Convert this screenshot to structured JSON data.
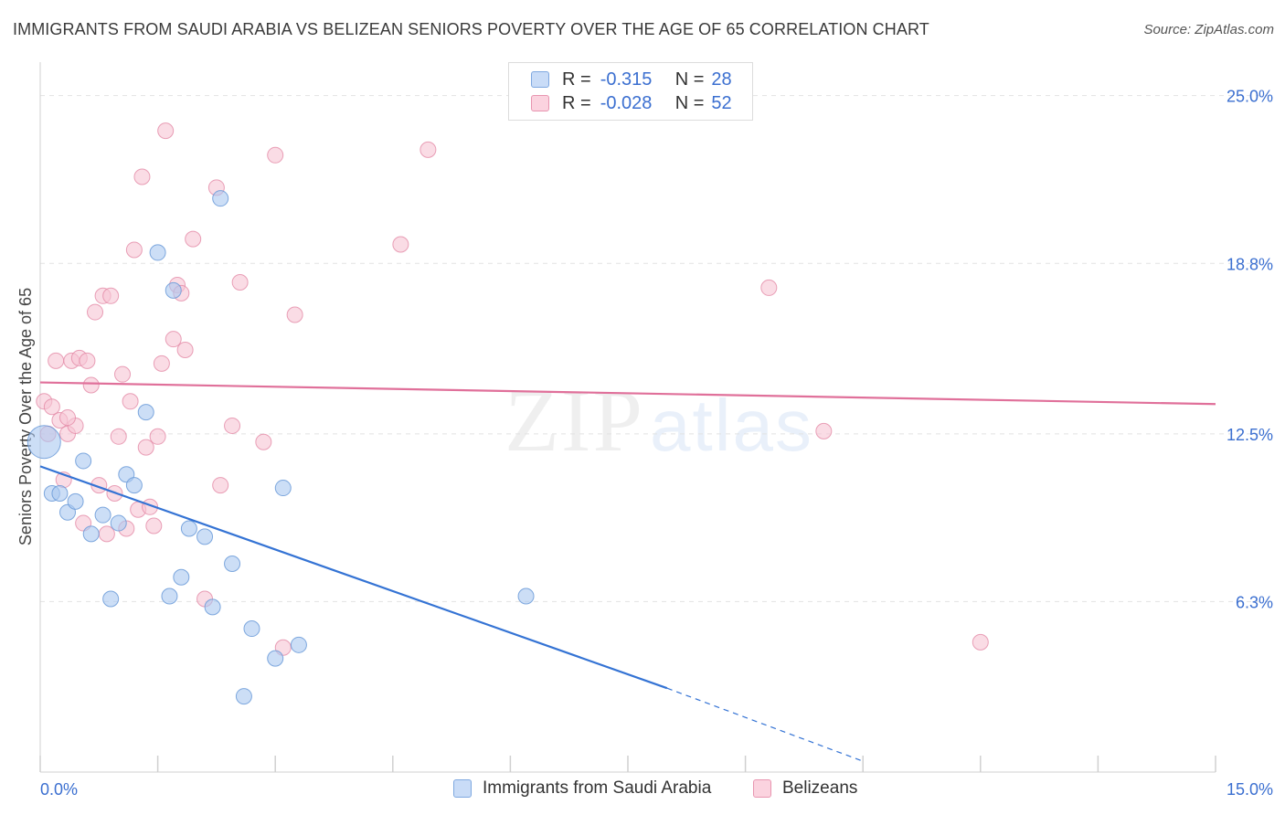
{
  "header": {
    "title": "IMMIGRANTS FROM SAUDI ARABIA VS BELIZEAN SENIORS POVERTY OVER THE AGE OF 65 CORRELATION CHART",
    "source": "Source: ZipAtlas.com"
  },
  "watermark": {
    "zip": "ZIP",
    "atlas": "atlas"
  },
  "legend": {
    "rows": [
      {
        "r_label": "R =",
        "r_value": "-0.315",
        "n_label": "N =",
        "n_value": "28",
        "color": "#aac8f0"
      },
      {
        "r_label": "R =",
        "r_value": "-0.028",
        "n_label": "N =",
        "n_value": "52",
        "color": "#f7bfd0"
      }
    ]
  },
  "colors": {
    "blue_fill": "#aac8f0",
    "blue_stroke": "#6a9ad8",
    "blue_line": "#3473d4",
    "pink_fill": "#f7c5d4",
    "pink_stroke": "#e38aa6",
    "pink_line": "#e0709a",
    "axis_label": "#3b6fd0",
    "grid": "#e2e2e2"
  },
  "chart_data": {
    "type": "scatter",
    "title": "IMMIGRANTS FROM SAUDI ARABIA VS BELIZEAN SENIORS POVERTY OVER THE AGE OF 65 CORRELATION CHART",
    "xlabel": "",
    "ylabel": "Seniors Poverty Over the Age of 65",
    "xlim": [
      0,
      15
    ],
    "ylim": [
      0,
      25.9
    ],
    "x_tick_labels": [
      "0.0%",
      "15.0%"
    ],
    "y_ticks": [
      6.3,
      12.5,
      18.8,
      25.0
    ],
    "y_tick_labels": [
      "6.3%",
      "12.5%",
      "18.8%",
      "25.0%"
    ],
    "grid": true,
    "legend_position": "bottom-center",
    "series": [
      {
        "name": "Immigrants from Saudi Arabia",
        "color": "#aac8f0",
        "points": [
          [
            0.05,
            12.2
          ],
          [
            0.15,
            10.3
          ],
          [
            0.25,
            10.3
          ],
          [
            0.35,
            9.6
          ],
          [
            0.45,
            10.0
          ],
          [
            0.55,
            11.5
          ],
          [
            0.65,
            8.8
          ],
          [
            0.8,
            9.5
          ],
          [
            0.9,
            6.4
          ],
          [
            1.0,
            9.2
          ],
          [
            1.1,
            11.0
          ],
          [
            1.2,
            10.6
          ],
          [
            1.35,
            13.3
          ],
          [
            1.5,
            19.2
          ],
          [
            1.65,
            6.5
          ],
          [
            1.7,
            17.8
          ],
          [
            1.8,
            7.2
          ],
          [
            1.9,
            9.0
          ],
          [
            2.1,
            8.7
          ],
          [
            2.2,
            6.1
          ],
          [
            2.3,
            21.2
          ],
          [
            2.45,
            7.7
          ],
          [
            2.6,
            2.8
          ],
          [
            2.7,
            5.3
          ],
          [
            3.0,
            4.2
          ],
          [
            3.1,
            10.5
          ],
          [
            3.3,
            4.7
          ],
          [
            6.2,
            6.5
          ]
        ],
        "trend": {
          "x": [
            0.0,
            8.0
          ],
          "y": [
            11.3,
            3.1
          ],
          "dashed_to": [
            10.5,
            0.4
          ]
        }
      },
      {
        "name": "Belizeans",
        "color": "#f7bfd0",
        "points": [
          [
            0.05,
            13.7
          ],
          [
            0.1,
            12.5
          ],
          [
            0.15,
            13.5
          ],
          [
            0.2,
            15.2
          ],
          [
            0.25,
            13.0
          ],
          [
            0.3,
            10.8
          ],
          [
            0.35,
            12.5
          ],
          [
            0.4,
            15.2
          ],
          [
            0.45,
            12.8
          ],
          [
            0.5,
            15.3
          ],
          [
            0.55,
            9.2
          ],
          [
            0.6,
            15.2
          ],
          [
            0.65,
            14.3
          ],
          [
            0.7,
            17.0
          ],
          [
            0.75,
            10.6
          ],
          [
            0.8,
            17.6
          ],
          [
            0.85,
            8.8
          ],
          [
            0.9,
            17.6
          ],
          [
            0.95,
            10.3
          ],
          [
            1.0,
            12.4
          ],
          [
            1.05,
            14.7
          ],
          [
            1.1,
            9.0
          ],
          [
            1.15,
            13.7
          ],
          [
            1.2,
            19.3
          ],
          [
            1.25,
            9.7
          ],
          [
            1.3,
            22.0
          ],
          [
            1.35,
            12.0
          ],
          [
            1.4,
            9.8
          ],
          [
            1.45,
            9.1
          ],
          [
            1.5,
            12.4
          ],
          [
            1.55,
            15.1
          ],
          [
            1.6,
            23.7
          ],
          [
            1.7,
            16.0
          ],
          [
            1.75,
            18.0
          ],
          [
            1.8,
            17.7
          ],
          [
            1.85,
            15.6
          ],
          [
            1.95,
            19.7
          ],
          [
            2.1,
            6.4
          ],
          [
            2.25,
            21.6
          ],
          [
            2.3,
            10.6
          ],
          [
            2.45,
            12.8
          ],
          [
            2.55,
            18.1
          ],
          [
            2.85,
            12.2
          ],
          [
            3.0,
            22.8
          ],
          [
            3.1,
            4.6
          ],
          [
            3.25,
            16.9
          ],
          [
            4.6,
            19.5
          ],
          [
            4.95,
            23.0
          ],
          [
            9.3,
            17.9
          ],
          [
            10.0,
            12.6
          ],
          [
            12.0,
            4.8
          ],
          [
            0.35,
            13.1
          ]
        ],
        "trend": {
          "x": [
            0.0,
            15.0
          ],
          "y": [
            14.4,
            13.6
          ]
        }
      }
    ]
  },
  "bottom_legend": {
    "items": [
      {
        "label": "Immigrants from Saudi Arabia",
        "color": "#aac8f0"
      },
      {
        "label": "Belizeans",
        "color": "#f7bfd0"
      }
    ]
  }
}
